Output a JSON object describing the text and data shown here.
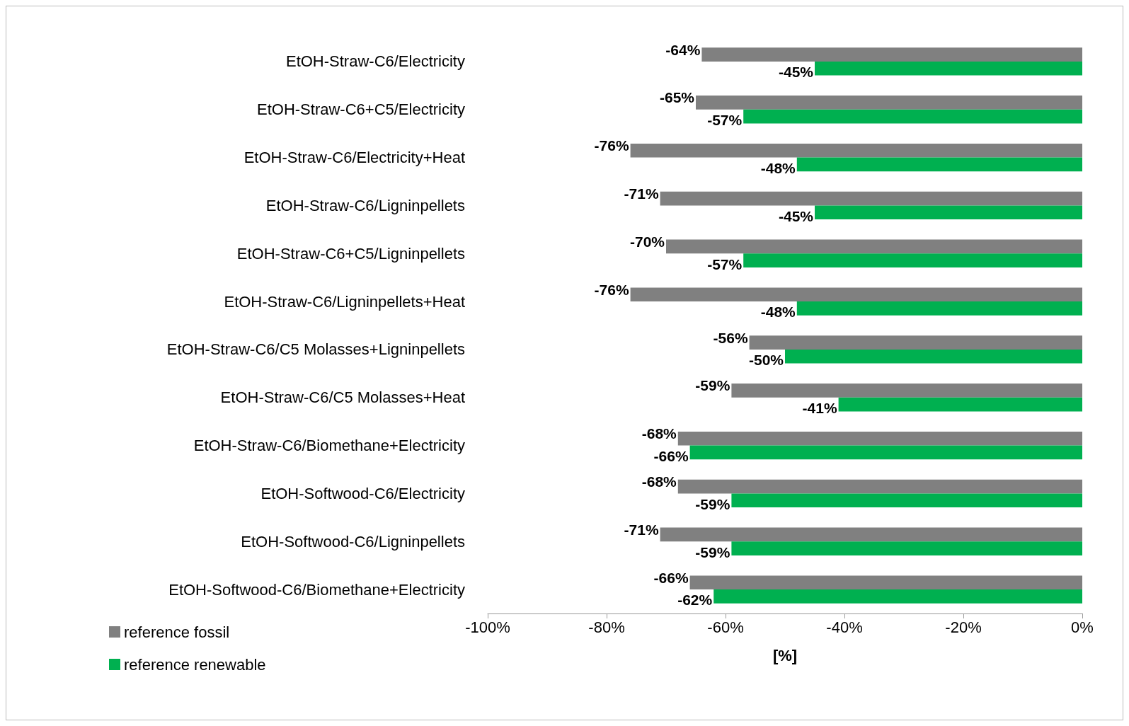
{
  "chart_data": {
    "type": "bar",
    "orientation": "horizontal",
    "xlabel": "[%]",
    "categories": [
      "EtOH-Straw-C6/Electricity",
      "EtOH-Straw-C6+C5/Electricity",
      "EtOH-Straw-C6/Electricity+Heat",
      "EtOH-Straw-C6/Ligninpellets",
      "EtOH-Straw-C6+C5/Ligninpellets",
      "EtOH-Straw-C6/Ligninpellets+Heat",
      "EtOH-Straw-C6/C5 Molasses+Ligninpellets",
      "EtOH-Straw-C6/C5 Molasses+Heat",
      "EtOH-Straw-C6/Biomethane+Electricity",
      "EtOH-Softwood-C6/Electricity",
      "EtOH-Softwood-C6/Ligninpellets",
      "EtOH-Softwood-C6/Biomethane+Electricity"
    ],
    "series": [
      {
        "name": "reference fossil",
        "color": "#808080",
        "values": [
          -64,
          -65,
          -76,
          -71,
          -70,
          -76,
          -56,
          -59,
          -68,
          -68,
          -71,
          -66
        ],
        "value_labels": [
          "-64%",
          "-65%",
          "-76%",
          "-71%",
          "-70%",
          "-76%",
          "-56%",
          "-59%",
          "-68%",
          "-68%",
          "-71%",
          "-66%"
        ]
      },
      {
        "name": "reference renewable",
        "color": "#00b050",
        "values": [
          -45,
          -57,
          -48,
          -45,
          -57,
          -48,
          -50,
          -41,
          -66,
          -59,
          -59,
          -62
        ],
        "value_labels": [
          "-45%",
          "-57%",
          "-48%",
          "-45%",
          "-57%",
          "-48%",
          "-50%",
          "-41%",
          "-66%",
          "-59%",
          "-59%",
          "-62%"
        ]
      }
    ],
    "xlim": [
      -100,
      0
    ],
    "xticks": [
      {
        "value": -100,
        "label": "-100%"
      },
      {
        "value": -80,
        "label": "-80%"
      },
      {
        "value": -60,
        "label": "-60%"
      },
      {
        "value": -40,
        "label": "-40%"
      },
      {
        "value": -20,
        "label": "-20%"
      },
      {
        "value": 0,
        "label": "0%"
      }
    ],
    "grid": false,
    "legend": "bottom left"
  }
}
